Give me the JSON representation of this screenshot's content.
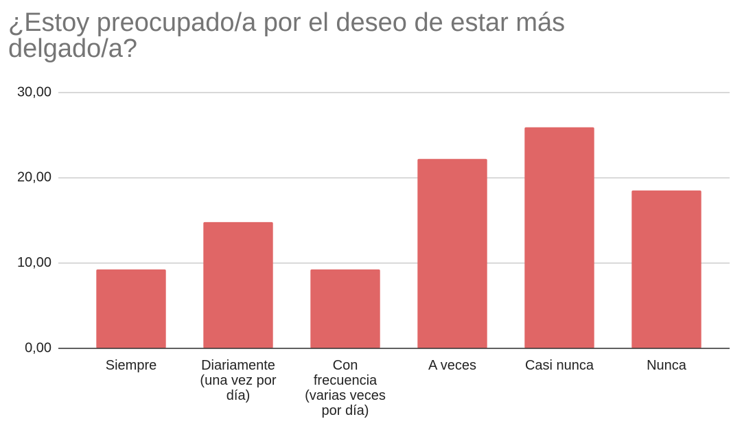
{
  "chart_data": {
    "type": "bar",
    "title": "¿Estoy preocupado/a por el deseo de estar más delgado/a?",
    "categories": [
      "Siempre",
      "Diariamente (una vez por día)",
      "Con frecuencia (varias veces por día)",
      "A veces",
      "Casi nunca",
      "Nunca"
    ],
    "values": [
      9.26,
      14.81,
      9.26,
      22.22,
      25.93,
      18.52
    ],
    "color": "#e06666",
    "ylim": [
      0,
      30
    ],
    "yticks": [
      {
        "value": 0,
        "label": "0,00"
      },
      {
        "value": 10,
        "label": "10,00"
      },
      {
        "value": 20,
        "label": "20,00"
      },
      {
        "value": 30,
        "label": "30,00"
      }
    ],
    "grid": true
  }
}
